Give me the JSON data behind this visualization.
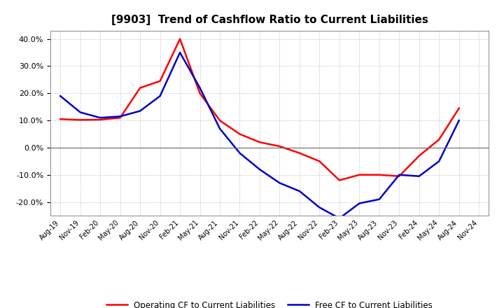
{
  "title": "[9903]  Trend of Cashflow Ratio to Current Liabilities",
  "x_labels": [
    "Aug-19",
    "Nov-19",
    "Feb-20",
    "May-20",
    "Aug-20",
    "Nov-20",
    "Feb-21",
    "May-21",
    "Aug-21",
    "Nov-21",
    "Feb-22",
    "May-22",
    "Aug-22",
    "Nov-22",
    "Feb-23",
    "May-23",
    "Aug-23",
    "Nov-23",
    "Feb-24",
    "May-24",
    "Aug-24",
    "Nov-24"
  ],
  "operating_cf": [
    10.5,
    10.2,
    10.3,
    11.0,
    22.0,
    24.5,
    40.0,
    20.0,
    10.0,
    5.0,
    2.0,
    0.5,
    -2.0,
    -5.0,
    -12.0,
    -10.0,
    -10.0,
    -10.5,
    -3.0,
    3.0,
    14.5,
    null
  ],
  "free_cf": [
    19.0,
    13.0,
    11.0,
    11.5,
    13.5,
    19.0,
    35.0,
    22.0,
    7.0,
    -2.0,
    -8.0,
    -13.0,
    -16.0,
    -22.0,
    -26.0,
    -20.5,
    -19.0,
    -10.0,
    -10.5,
    -5.0,
    10.0,
    null
  ],
  "ylim": [
    -25,
    43
  ],
  "yticks": [
    -20.0,
    -10.0,
    0.0,
    10.0,
    20.0,
    30.0,
    40.0
  ],
  "operating_color": "#ff0000",
  "free_color": "#0000cc",
  "background_color": "#ffffff",
  "grid_color": "#aaaaaa",
  "legend_labels": [
    "Operating CF to Current Liabilities",
    "Free CF to Current Liabilities"
  ]
}
